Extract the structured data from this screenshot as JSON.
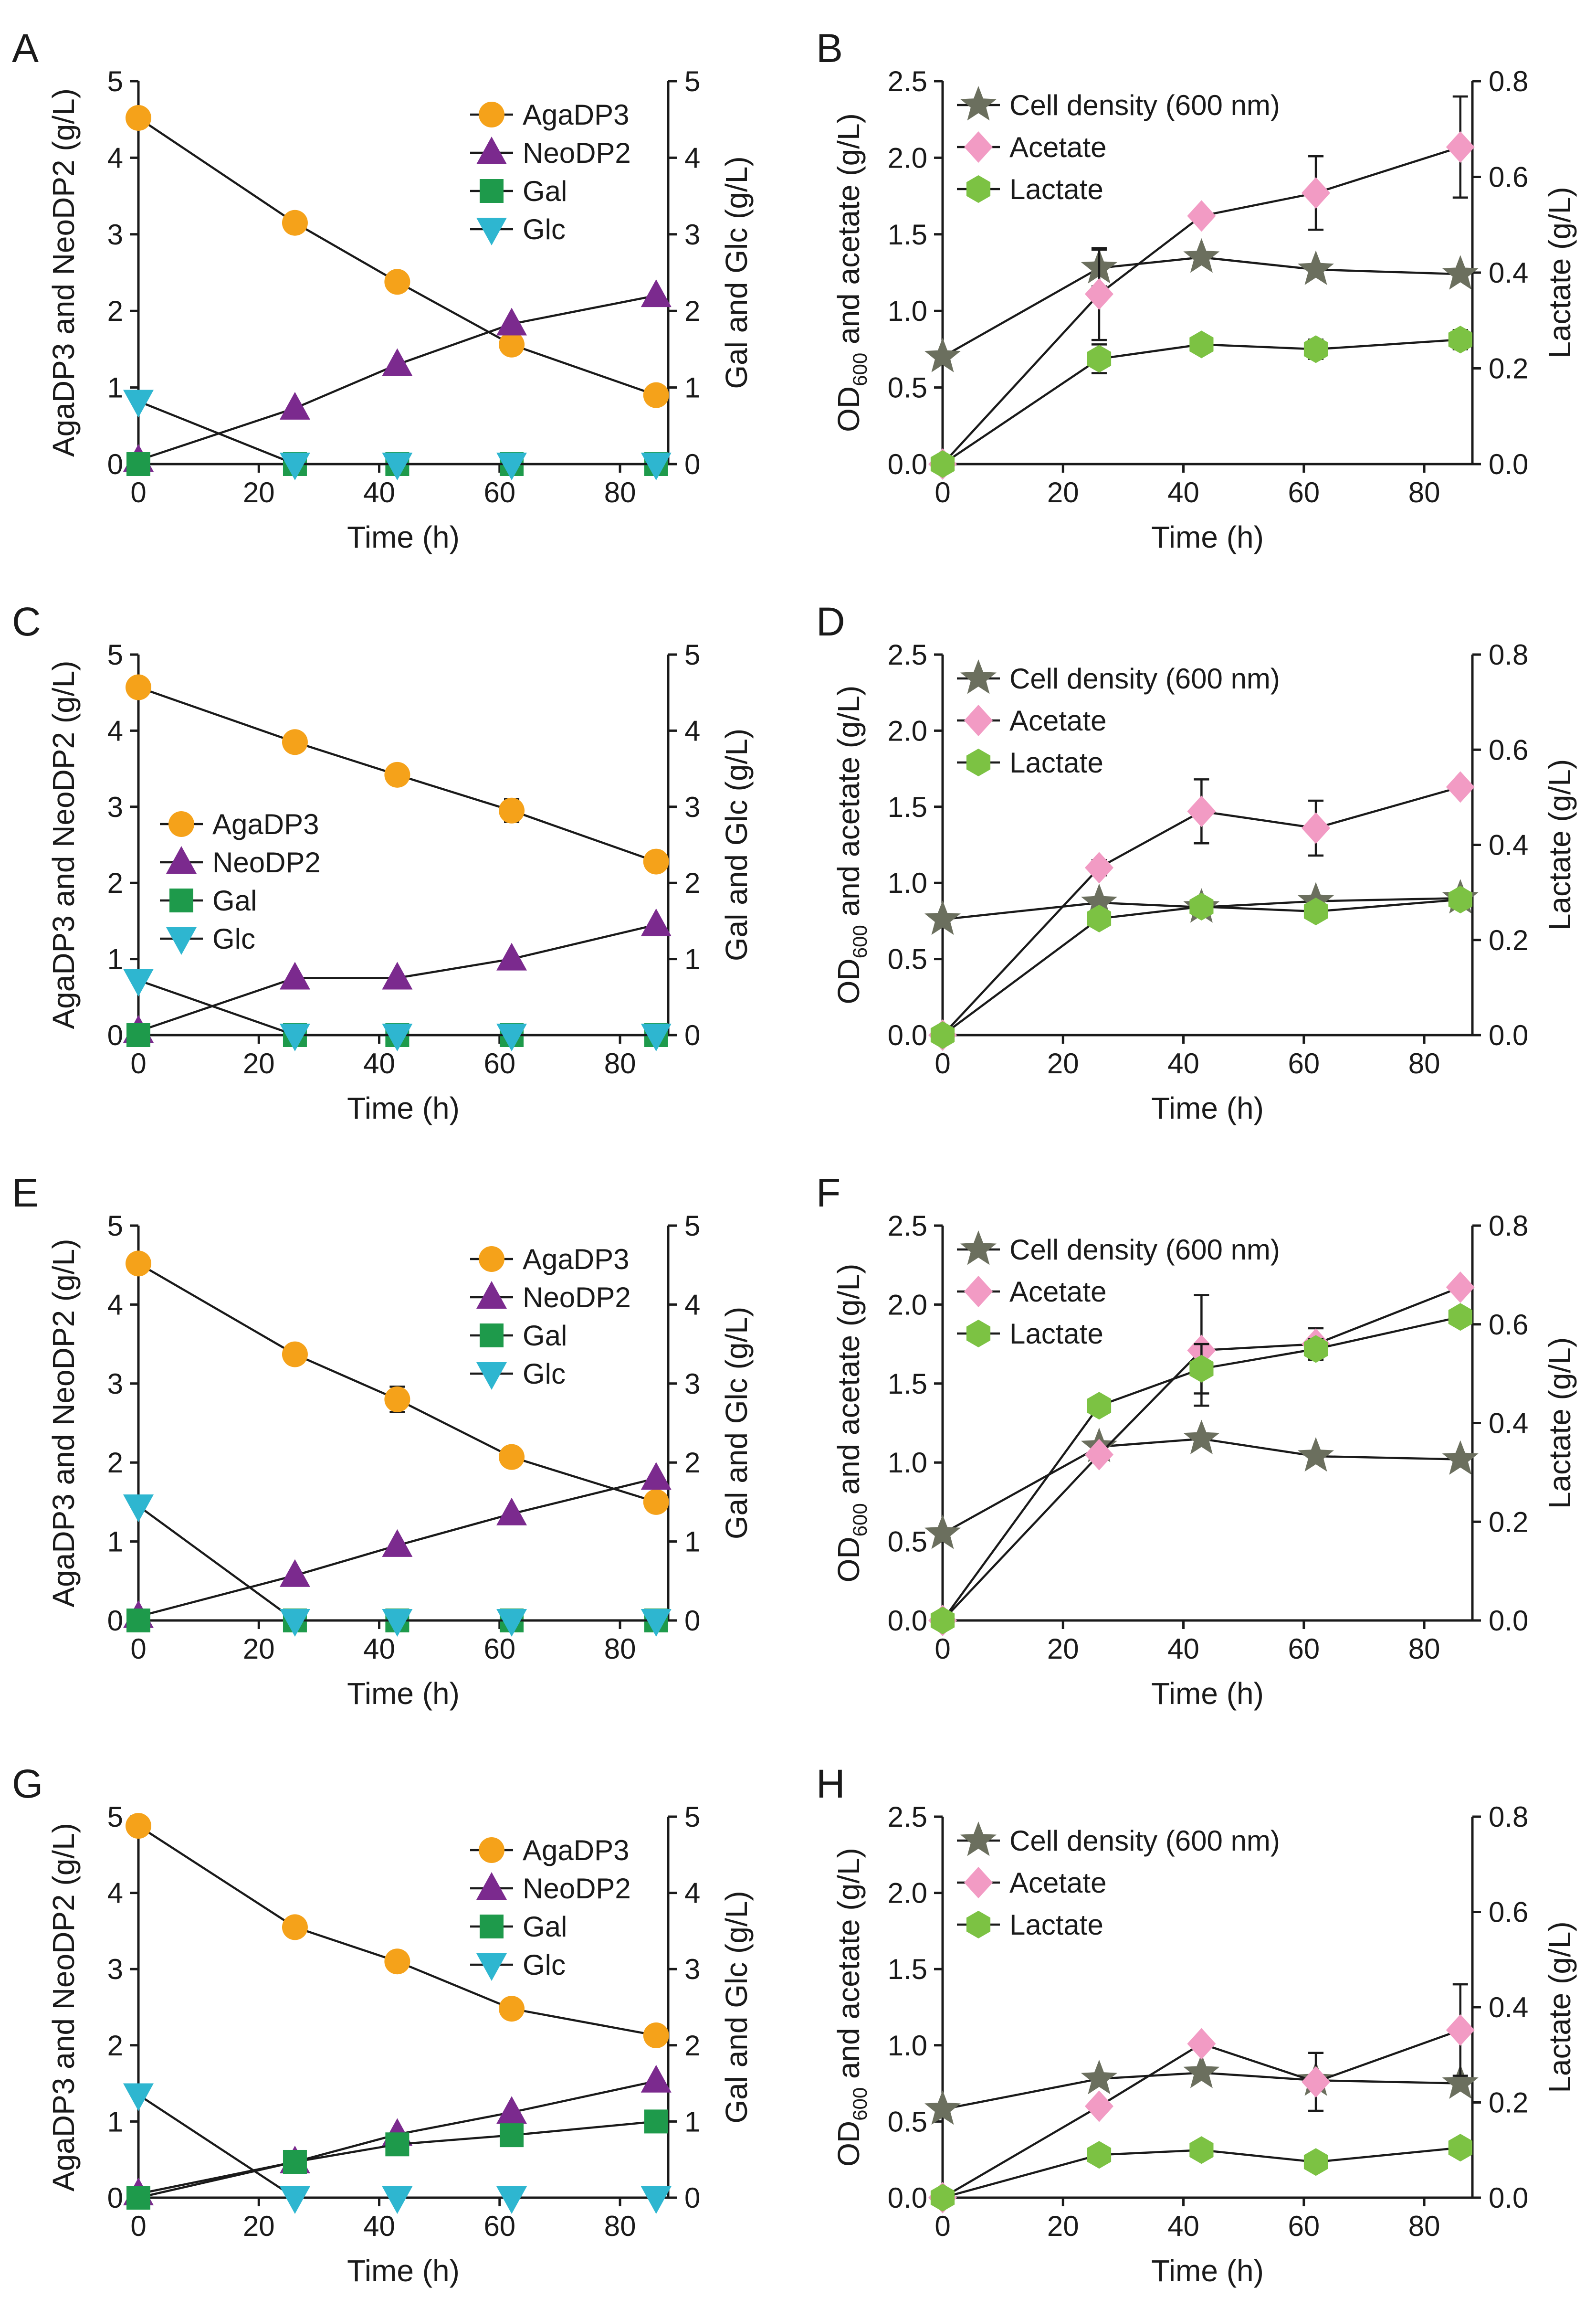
{
  "figure": {
    "type": "multi-panel chart figure"
  },
  "chart_data": [
    {
      "panel": "A",
      "kind": "sugar",
      "type": "line",
      "xlabel": "Time (h)",
      "ylabel": "AgaDP3 and NeoDP2 (g/L)",
      "y2label": "Gal and Glc (g/L)",
      "xlim": [
        0,
        88
      ],
      "xticks": [
        0,
        20,
        40,
        60,
        80
      ],
      "ylim": [
        0,
        5
      ],
      "yticks": [
        0,
        1,
        2,
        3,
        4,
        5
      ],
      "y2lim": [
        0,
        5
      ],
      "y2ticks": [
        0,
        1,
        2,
        3,
        4,
        5
      ],
      "legend_position": "top-right",
      "x": [
        0,
        26,
        43,
        62,
        86
      ],
      "series": [
        {
          "name": "AgaDP3",
          "marker": "circle",
          "color": "#F5A21A",
          "axis": "left",
          "values": [
            4.52,
            3.15,
            2.38,
            1.56,
            0.9
          ],
          "err": [
            0,
            0,
            0,
            0,
            0
          ]
        },
        {
          "name": "NeoDP2",
          "marker": "triangle-up",
          "color": "#7B2A8E",
          "axis": "left",
          "values": [
            0.05,
            0.73,
            1.3,
            1.83,
            2.2
          ],
          "err": [
            0,
            0,
            0,
            0,
            0
          ]
        },
        {
          "name": "Gal",
          "marker": "square",
          "color": "#1E9A4B",
          "axis": "right",
          "values": [
            0,
            0,
            0,
            0,
            0
          ],
          "err": [
            0,
            0,
            0,
            0,
            0
          ]
        },
        {
          "name": "Glc",
          "marker": "triangle-down",
          "color": "#2EB6D0",
          "axis": "right",
          "values": [
            0.82,
            0,
            0,
            0,
            0
          ],
          "err": [
            0,
            0,
            0,
            0,
            0
          ]
        }
      ]
    },
    {
      "panel": "B",
      "kind": "ferm",
      "type": "line",
      "xlabel": "Time (h)",
      "ylabel_main": "OD",
      "ylabel_sub": "600",
      "ylabel_rest": " and acetate (g/L)",
      "y2label": "Lactate (g/L)",
      "xlim": [
        0,
        88
      ],
      "xticks": [
        0,
        20,
        40,
        60,
        80
      ],
      "ylim": [
        0,
        2.5
      ],
      "yticks": [
        "0.0",
        "0.5",
        "1.0",
        "1.5",
        "2.0",
        "2.5"
      ],
      "y2lim": [
        0,
        0.8
      ],
      "y2ticks": [
        "0.0",
        "0.2",
        "0.4",
        "0.6",
        "0.8"
      ],
      "legend_position": "top-left",
      "x": [
        0,
        26,
        43,
        62,
        86
      ],
      "series": [
        {
          "name": "Cell density (600 nm)",
          "marker": "star",
          "color": "#6B6F5E",
          "axis": "left",
          "values": [
            0.7,
            1.28,
            1.35,
            1.27,
            1.24
          ],
          "err": [
            0,
            0.12,
            0,
            0,
            0
          ]
        },
        {
          "name": "Acetate",
          "marker": "diamond",
          "color": "#F29BC4",
          "axis": "left",
          "values": [
            0,
            1.11,
            1.62,
            1.77,
            2.07
          ],
          "err": [
            0,
            0.3,
            0,
            0.24,
            0.33
          ]
        },
        {
          "name": "Lactate",
          "marker": "hexagon",
          "color": "#7CC243",
          "axis": "right",
          "values": [
            0,
            0.22,
            0.25,
            0.24,
            0.26
          ],
          "err": [
            0,
            0.03,
            0,
            0.02,
            0.02
          ]
        }
      ]
    },
    {
      "panel": "C",
      "kind": "sugar",
      "type": "line",
      "xlabel": "Time (h)",
      "ylabel": "AgaDP3 and NeoDP2 (g/L)",
      "y2label": "Gal and Glc (g/L)",
      "xlim": [
        0,
        88
      ],
      "xticks": [
        0,
        20,
        40,
        60,
        80
      ],
      "ylim": [
        0,
        5
      ],
      "yticks": [
        0,
        1,
        2,
        3,
        4,
        5
      ],
      "y2lim": [
        0,
        5
      ],
      "y2ticks": [
        0,
        1,
        2,
        3,
        4,
        5
      ],
      "legend_position": "middle-left",
      "x": [
        0,
        26,
        43,
        62,
        86
      ],
      "series": [
        {
          "name": "AgaDP3",
          "marker": "circle",
          "color": "#F5A21A",
          "axis": "left",
          "values": [
            4.57,
            3.85,
            3.42,
            2.95,
            2.28
          ],
          "err": [
            0,
            0,
            0,
            0.15,
            0
          ]
        },
        {
          "name": "NeoDP2",
          "marker": "triangle-up",
          "color": "#7B2A8E",
          "axis": "left",
          "values": [
            0.05,
            0.75,
            0.75,
            1.0,
            1.45
          ],
          "err": [
            0,
            0,
            0,
            0,
            0
          ]
        },
        {
          "name": "Gal",
          "marker": "square",
          "color": "#1E9A4B",
          "axis": "right",
          "values": [
            0,
            0,
            0,
            0,
            0
          ],
          "err": [
            0,
            0,
            0,
            0,
            0
          ]
        },
        {
          "name": "Glc",
          "marker": "triangle-down",
          "color": "#2EB6D0",
          "axis": "right",
          "values": [
            0.72,
            0,
            0,
            0,
            0
          ],
          "err": [
            0,
            0,
            0,
            0,
            0
          ]
        }
      ]
    },
    {
      "panel": "D",
      "kind": "ferm",
      "type": "line",
      "xlabel": "Time (h)",
      "ylabel_main": "OD",
      "ylabel_sub": "600",
      "ylabel_rest": " and acetate (g/L)",
      "y2label": "Lactate (g/L)",
      "xlim": [
        0,
        88
      ],
      "xticks": [
        0,
        20,
        40,
        60,
        80
      ],
      "ylim": [
        0,
        2.5
      ],
      "yticks": [
        "0.0",
        "0.5",
        "1.0",
        "1.5",
        "2.0",
        "2.5"
      ],
      "y2lim": [
        0,
        0.8
      ],
      "y2ticks": [
        "0.0",
        "0.2",
        "0.4",
        "0.6",
        "0.8"
      ],
      "legend_position": "top-left",
      "x": [
        0,
        26,
        43,
        62,
        86
      ],
      "series": [
        {
          "name": "Cell density (600 nm)",
          "marker": "star",
          "color": "#6B6F5E",
          "axis": "left",
          "values": [
            0.76,
            0.87,
            0.84,
            0.88,
            0.9
          ],
          "err": [
            0,
            0,
            0,
            0,
            0
          ]
        },
        {
          "name": "Acetate",
          "marker": "diamond",
          "color": "#F29BC4",
          "axis": "left",
          "values": [
            0,
            1.1,
            1.47,
            1.36,
            1.63
          ],
          "err": [
            0,
            0.05,
            0.21,
            0.18,
            0
          ]
        },
        {
          "name": "Lactate",
          "marker": "hexagon",
          "color": "#7CC243",
          "axis": "right",
          "values": [
            0,
            0.245,
            0.27,
            0.26,
            0.285
          ],
          "err": [
            0,
            0,
            0,
            0,
            0
          ]
        }
      ]
    },
    {
      "panel": "E",
      "kind": "sugar",
      "type": "line",
      "xlabel": "Time (h)",
      "ylabel": "AgaDP3 and NeoDP2 (g/L)",
      "y2label": "Gal and Glc (g/L)",
      "xlim": [
        0,
        88
      ],
      "xticks": [
        0,
        20,
        40,
        60,
        80
      ],
      "ylim": [
        0,
        5
      ],
      "yticks": [
        0,
        1,
        2,
        3,
        4,
        5
      ],
      "y2lim": [
        0,
        5
      ],
      "y2ticks": [
        0,
        1,
        2,
        3,
        4,
        5
      ],
      "legend_position": "top-right",
      "x": [
        0,
        26,
        43,
        62,
        86
      ],
      "series": [
        {
          "name": "AgaDP3",
          "marker": "circle",
          "color": "#F5A21A",
          "axis": "left",
          "values": [
            4.52,
            3.37,
            2.8,
            2.07,
            1.5
          ],
          "err": [
            0,
            0,
            0.16,
            0,
            0
          ]
        },
        {
          "name": "NeoDP2",
          "marker": "triangle-up",
          "color": "#7B2A8E",
          "axis": "left",
          "values": [
            0.05,
            0.57,
            0.95,
            1.35,
            1.8
          ],
          "err": [
            0,
            0,
            0,
            0,
            0
          ]
        },
        {
          "name": "Gal",
          "marker": "square",
          "color": "#1E9A4B",
          "axis": "right",
          "values": [
            0,
            0,
            0,
            0,
            0
          ],
          "err": [
            0,
            0,
            0,
            0,
            0
          ]
        },
        {
          "name": "Glc",
          "marker": "triangle-down",
          "color": "#2EB6D0",
          "axis": "right",
          "values": [
            1.45,
            0,
            0,
            0,
            0
          ],
          "err": [
            0,
            0,
            0,
            0,
            0
          ]
        }
      ]
    },
    {
      "panel": "F",
      "kind": "ferm",
      "type": "line",
      "xlabel": "Time (h)",
      "ylabel_main": "OD",
      "ylabel_sub": "600",
      "ylabel_rest": " and acetate (g/L)",
      "y2label": "Lactate (g/L)",
      "xlim": [
        0,
        88
      ],
      "xticks": [
        0,
        20,
        40,
        60,
        80
      ],
      "ylim": [
        0,
        2.5
      ],
      "yticks": [
        "0.0",
        "0.5",
        "1.0",
        "1.5",
        "2.0",
        "2.5"
      ],
      "y2lim": [
        0,
        0.8
      ],
      "y2ticks": [
        "0.0",
        "0.2",
        "0.4",
        "0.6",
        "0.8"
      ],
      "legend_position": "top-left",
      "x": [
        0,
        26,
        43,
        62,
        86
      ],
      "series": [
        {
          "name": "Cell density (600 nm)",
          "marker": "star",
          "color": "#6B6F5E",
          "axis": "left",
          "values": [
            0.55,
            1.1,
            1.15,
            1.04,
            1.02
          ],
          "err": [
            0,
            0,
            0,
            0,
            0
          ]
        },
        {
          "name": "Acetate",
          "marker": "diamond",
          "color": "#F29BC4",
          "axis": "left",
          "values": [
            0,
            1.05,
            1.71,
            1.75,
            2.11
          ],
          "err": [
            0,
            0,
            0.35,
            0.1,
            0
          ]
        },
        {
          "name": "Lactate",
          "marker": "hexagon",
          "color": "#7CC243",
          "axis": "right",
          "values": [
            0,
            0.435,
            0.51,
            0.55,
            0.615
          ],
          "err": [
            0,
            0,
            0.05,
            0.02,
            0
          ]
        }
      ]
    },
    {
      "panel": "G",
      "kind": "sugar",
      "type": "line",
      "xlabel": "Time (h)",
      "ylabel": "AgaDP3 and NeoDP2 (g/L)",
      "y2label": "Gal and Glc (g/L)",
      "xlim": [
        0,
        88
      ],
      "xticks": [
        0,
        20,
        40,
        60,
        80
      ],
      "ylim": [
        0,
        5
      ],
      "yticks": [
        0,
        1,
        2,
        3,
        4,
        5
      ],
      "y2lim": [
        0,
        5
      ],
      "y2ticks": [
        0,
        1,
        2,
        3,
        4,
        5
      ],
      "legend_position": "top-right",
      "x": [
        0,
        26,
        43,
        62,
        86
      ],
      "series": [
        {
          "name": "AgaDP3",
          "marker": "circle",
          "color": "#F5A21A",
          "axis": "left",
          "values": [
            4.88,
            3.55,
            3.1,
            2.48,
            2.13
          ],
          "err": [
            0,
            0,
            0,
            0,
            0
          ]
        },
        {
          "name": "NeoDP2",
          "marker": "triangle-up",
          "color": "#7B2A8E",
          "axis": "left",
          "values": [
            0.05,
            0.47,
            0.83,
            1.12,
            1.53
          ],
          "err": [
            0,
            0,
            0,
            0,
            0
          ]
        },
        {
          "name": "Gal",
          "marker": "square",
          "color": "#1E9A4B",
          "axis": "right",
          "values": [
            0,
            0.47,
            0.7,
            0.82,
            1.0
          ],
          "err": [
            0,
            0,
            0,
            0,
            0
          ]
        },
        {
          "name": "Glc",
          "marker": "triangle-down",
          "color": "#2EB6D0",
          "axis": "right",
          "values": [
            1.35,
            0,
            0,
            0,
            0
          ],
          "err": [
            0,
            0,
            0,
            0,
            0
          ]
        }
      ]
    },
    {
      "panel": "H",
      "kind": "ferm",
      "type": "line",
      "xlabel": "Time (h)",
      "ylabel": "OD and acetate (g/L)",
      "ylabel_main": "OD",
      "ylabel_sub": "600",
      "ylabel_rest": " and acetate (g/L)",
      "y2label": "Lactate (g/L)",
      "xlim": [
        0,
        88
      ],
      "xticks": [
        0,
        20,
        40,
        60,
        80
      ],
      "ylim": [
        0,
        2.5
      ],
      "yticks": [
        "0.0",
        "0.5",
        "1.0",
        "1.5",
        "2.0",
        "2.5"
      ],
      "y2lim": [
        0,
        0.8
      ],
      "y2ticks": [
        "0.0",
        "0.2",
        "0.4",
        "0.6",
        "0.8"
      ],
      "legend_position": "top-left",
      "x": [
        0,
        26,
        43,
        62,
        86
      ],
      "series": [
        {
          "name": "Cell density (600 nm)",
          "marker": "star",
          "color": "#6B6F5E",
          "axis": "left",
          "values": [
            0.58,
            0.78,
            0.82,
            0.77,
            0.75
          ],
          "err": [
            0,
            0,
            0,
            0,
            0
          ]
        },
        {
          "name": "Acetate",
          "marker": "diamond",
          "color": "#F29BC4",
          "axis": "left",
          "values": [
            0,
            0.6,
            1.01,
            0.76,
            1.1
          ],
          "err": [
            0,
            0,
            0,
            0.19,
            0.3
          ]
        },
        {
          "name": "Lactate",
          "marker": "hexagon",
          "color": "#7CC243",
          "axis": "right",
          "values": [
            0,
            0.09,
            0.1,
            0.075,
            0.105
          ],
          "err": [
            0,
            0,
            0,
            0,
            0
          ]
        }
      ]
    }
  ]
}
